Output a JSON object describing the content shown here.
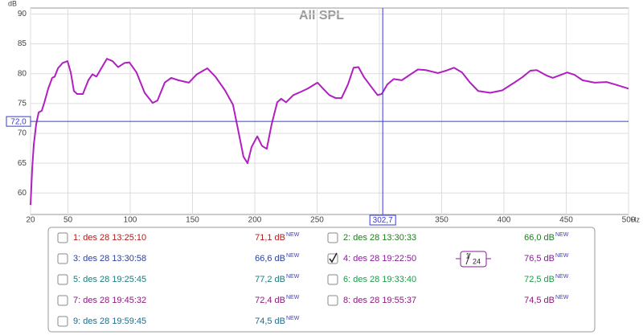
{
  "chart_data": {
    "type": "line",
    "title": "All SPL",
    "y_unit": "dB",
    "x_unit": "Hz",
    "x": [
      20,
      21.3,
      22.6,
      24.5,
      26.5,
      29,
      31,
      34.2,
      37.4,
      39.4,
      42,
      45.8,
      49.7,
      52.3,
      54.8,
      57.4,
      62,
      66.4,
      69.7,
      72.9,
      76.8,
      81.3,
      85.8,
      90.3,
      95.5,
      99.3,
      105.1,
      111.6,
      118,
      121.9,
      127.7,
      132.9,
      138.7,
      147.1,
      153.5,
      161.9,
      168.4,
      176.1,
      182.5,
      186.4,
      190.9,
      194.2,
      197.4,
      202,
      205.8,
      209.6,
      213.5,
      218,
      221.2,
      225.1,
      230.9,
      237.4,
      242.5,
      250.3,
      254.8,
      259.9,
      265.1,
      269.6,
      274.8,
      279.3,
      283.2,
      287.7,
      293.5,
      298.6,
      301.9,
      306.4,
      311.5,
      318,
      324.4,
      330.9,
      337.3,
      347,
      353.5,
      359.9,
      366.4,
      372.8,
      379.3,
      389,
      398.6,
      408.3,
      414.7,
      421.2,
      426.3,
      434.1,
      439.2,
      445.7,
      450.8,
      456.7,
      463.1,
      472.8,
      482.5,
      489,
      500
    ],
    "series": [
      {
        "color": "#b01fbf",
        "values": [
          58,
          64,
          68.1,
          71.5,
          73.5,
          73.8,
          75.1,
          77.5,
          79.3,
          79.5,
          80.9,
          81.8,
          82.1,
          80.2,
          77.1,
          76.6,
          76.6,
          78.9,
          79.9,
          79.5,
          80.9,
          82.5,
          82.1,
          81.1,
          81.8,
          81.9,
          80.2,
          76.8,
          75.1,
          75.5,
          78.5,
          79.3,
          78.9,
          78.5,
          79.9,
          80.9,
          79.5,
          77.2,
          74.8,
          70.8,
          66.1,
          65,
          67.7,
          69.5,
          67.9,
          67.4,
          71.5,
          75.2,
          75.8,
          75.2,
          76.4,
          77,
          77.5,
          78.5,
          77.5,
          76.4,
          75.9,
          75.9,
          78.2,
          81,
          81.1,
          79.4,
          77.8,
          76.4,
          76.6,
          78.2,
          79.1,
          78.9,
          79.8,
          80.7,
          80.6,
          80.1,
          80.5,
          81,
          80.2,
          78.5,
          77.1,
          76.8,
          77.2,
          78.5,
          79.4,
          80.5,
          80.6,
          79.7,
          79.3,
          79.8,
          80.2,
          79.8,
          78.9,
          78.5,
          78.6,
          78.2,
          77.5
        ]
      }
    ],
    "xlim": [
      20,
      500
    ],
    "xticks": [
      20,
      50,
      100,
      150,
      200,
      250,
      300,
      350,
      400,
      450,
      500
    ],
    "ylim": [
      56.4,
      91
    ],
    "yticks": [
      60,
      65,
      70,
      75,
      80,
      85,
      90
    ],
    "grid": true,
    "cursor_x": {
      "value": 302.7,
      "label": "302,7"
    },
    "cursor_y": {
      "value": 72.0,
      "label": "72,0"
    },
    "cursor_color": "#3a3ad8"
  },
  "measurements": [
    {
      "name": "1: des 28 13:25:10",
      "value": "71,1 dB",
      "badge": "NEW",
      "color": "#b01c1c",
      "checked": false
    },
    {
      "name": "2: des 28 13:30:33",
      "value": "66,0 dB",
      "badge": "NEW",
      "color": "#1f7a1f",
      "checked": false
    },
    {
      "name": "3: des 28 13:30:58",
      "value": "66,6 dB",
      "badge": "NEW",
      "color": "#2a3f9a",
      "checked": false
    },
    {
      "name": "4: des 28 19:22:50",
      "value": "76,5 dB",
      "badge": "NEW",
      "color": "#8a1a9a",
      "checked": true
    },
    {
      "name": "5: des 28 19:25:45",
      "value": "77,2 dB",
      "badge": "NEW",
      "color": "#1e7a7a",
      "checked": false
    },
    {
      "name": "6: des 28 19:33:40",
      "value": "72,5 dB",
      "badge": "NEW",
      "color": "#1e9a4a",
      "checked": false
    },
    {
      "name": "7: des 28 19:45:32",
      "value": "72,4 dB",
      "badge": "NEW",
      "color": "#8a1a7a",
      "checked": false
    },
    {
      "name": "8: des 28 19:55:37",
      "value": "74,5 dB",
      "badge": "NEW",
      "color": "#8a1a7a",
      "checked": false
    },
    {
      "name": "9: des 28 19:59:45",
      "value": "74,5 dB",
      "badge": "NEW",
      "color": "#1e6a8a",
      "checked": false
    }
  ],
  "page": {
    "current": "1",
    "total": "24"
  }
}
